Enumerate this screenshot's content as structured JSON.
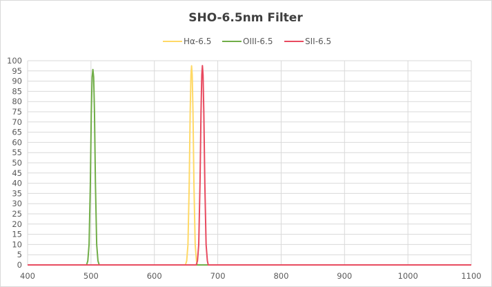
{
  "chart_data": {
    "type": "line",
    "title": "SHO-6.5nm Filter",
    "xlabel": "",
    "ylabel": "",
    "xlim": [
      400,
      1100
    ],
    "ylim": [
      0,
      100
    ],
    "x_ticks": [
      400,
      500,
      600,
      700,
      800,
      900,
      1000,
      1100
    ],
    "y_ticks": [
      0,
      5,
      10,
      15,
      20,
      25,
      30,
      35,
      40,
      45,
      50,
      55,
      60,
      65,
      70,
      75,
      80,
      85,
      90,
      95,
      100
    ],
    "grid": true,
    "legend_position": "top",
    "series": [
      {
        "name": "Hα-6.5",
        "color": "#FFD966",
        "points": [
          [
            400,
            0
          ],
          [
            649,
            0
          ],
          [
            651,
            2
          ],
          [
            653,
            10
          ],
          [
            655,
            40
          ],
          [
            656.5,
            75
          ],
          [
            657.7,
            93
          ],
          [
            658.7,
            97.5
          ],
          [
            659.7,
            93
          ],
          [
            660.9,
            75
          ],
          [
            662.4,
            40
          ],
          [
            664.4,
            10
          ],
          [
            666.4,
            2
          ],
          [
            668,
            0
          ],
          [
            1100,
            0
          ]
        ]
      },
      {
        "name": "OIII-6.5",
        "color": "#70AD47",
        "points": [
          [
            400,
            0
          ],
          [
            493,
            0
          ],
          [
            495,
            2
          ],
          [
            497,
            10
          ],
          [
            499,
            40
          ],
          [
            500.5,
            75
          ],
          [
            501.8,
            92
          ],
          [
            503,
            95.7
          ],
          [
            504.2,
            92
          ],
          [
            505.5,
            75
          ],
          [
            507,
            40
          ],
          [
            509,
            10
          ],
          [
            511,
            2
          ],
          [
            513,
            0
          ],
          [
            1100,
            0
          ]
        ]
      },
      {
        "name": "SII-6.5",
        "color": "#E84A5F",
        "points": [
          [
            400,
            0
          ],
          [
            666,
            0
          ],
          [
            668,
            2
          ],
          [
            670,
            10
          ],
          [
            672,
            40
          ],
          [
            673.6,
            75
          ],
          [
            674.8,
            93
          ],
          [
            675.8,
            97.6
          ],
          [
            676.8,
            93
          ],
          [
            678,
            75
          ],
          [
            679.6,
            40
          ],
          [
            681.6,
            10
          ],
          [
            683.6,
            2
          ],
          [
            685,
            0
          ],
          [
            1100,
            0
          ]
        ]
      }
    ]
  }
}
